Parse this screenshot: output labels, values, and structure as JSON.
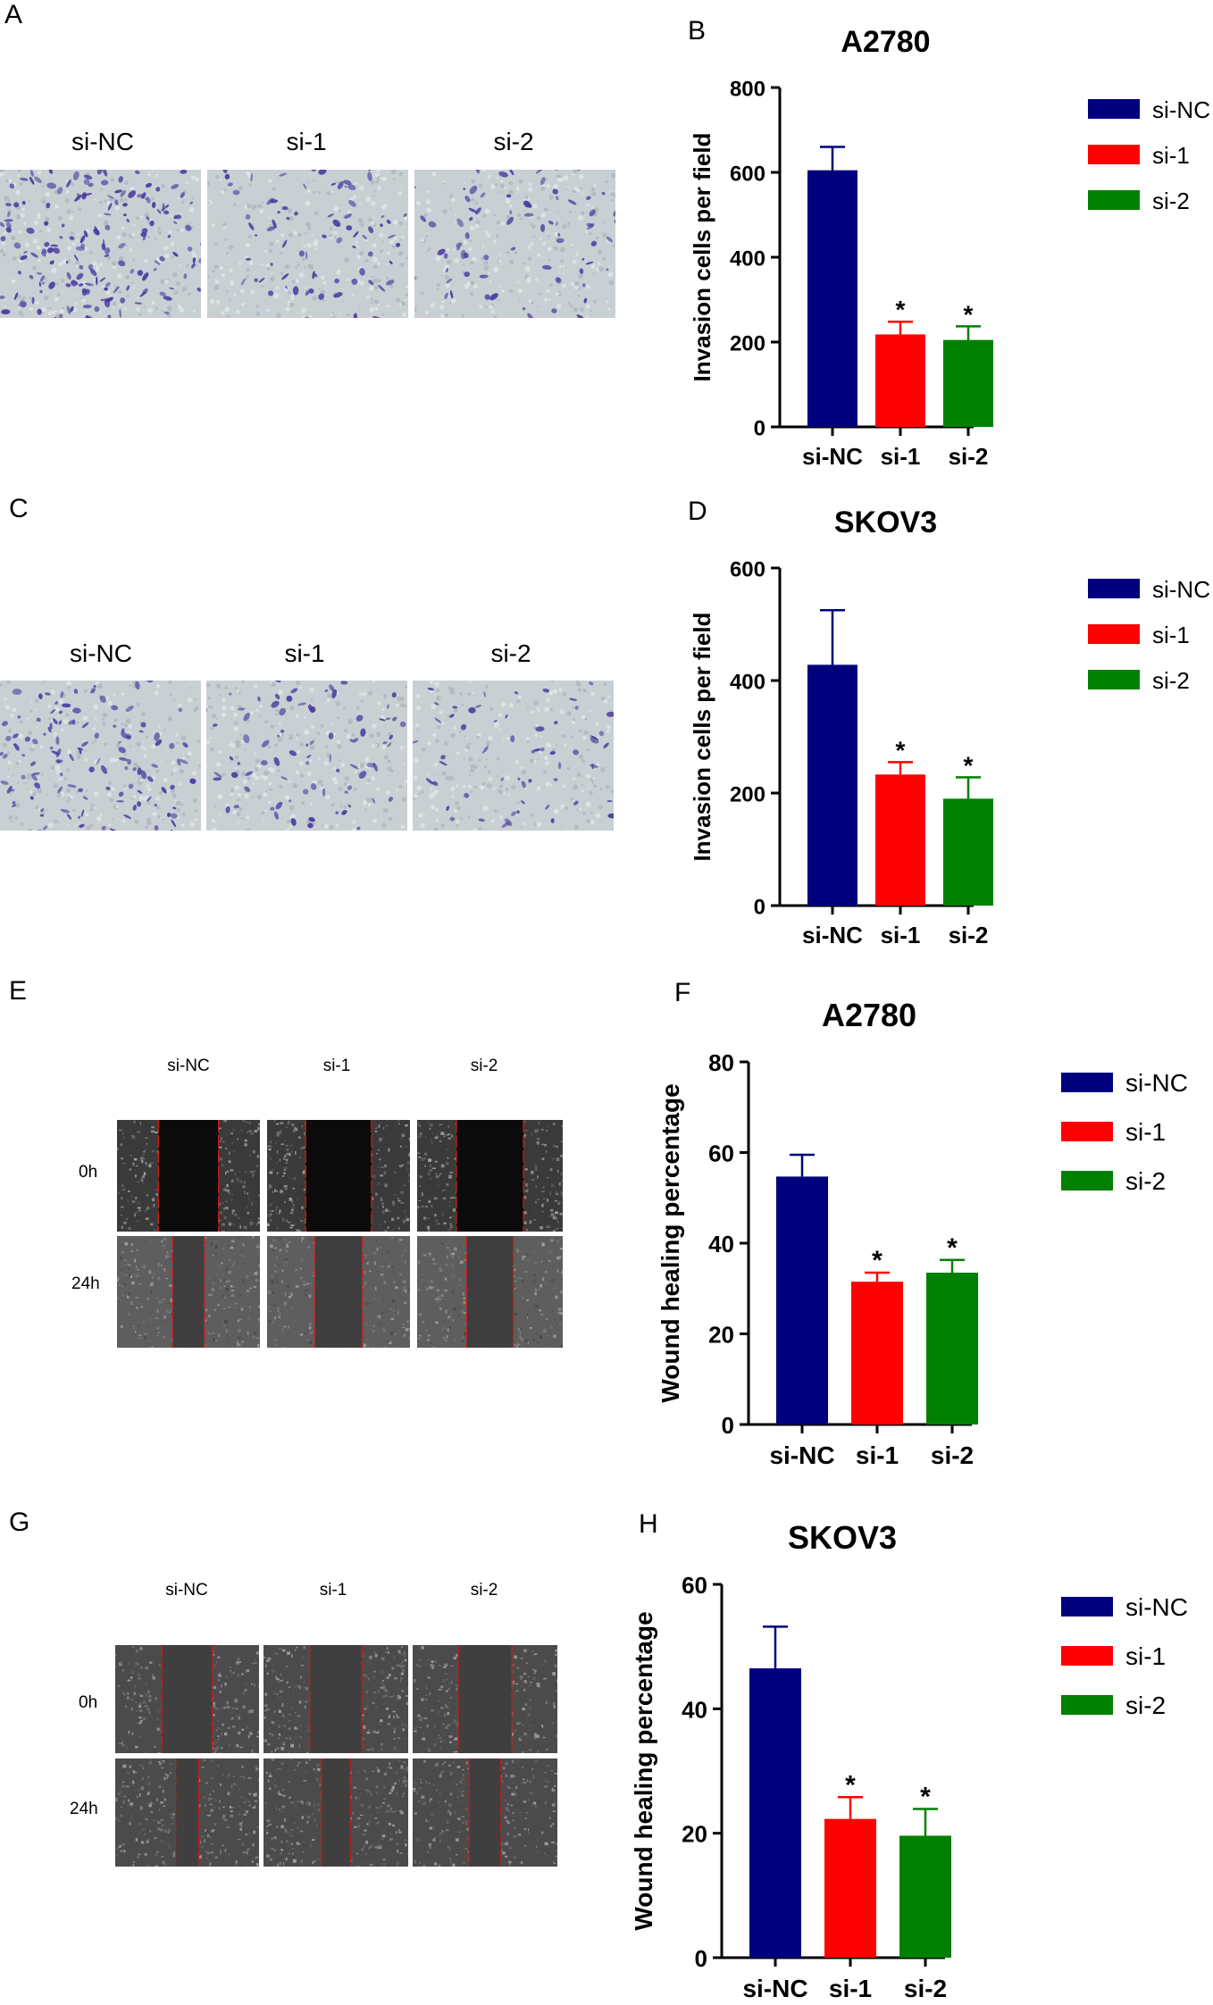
{
  "panels": {
    "a": "A",
    "b": "B",
    "c": "C",
    "d": "D",
    "e": "E",
    "f": "F",
    "g": "G",
    "h": "H"
  },
  "micrographs": {
    "invasion_labels": [
      "si-NC",
      "si-1",
      "si-2"
    ],
    "wound_col_labels": [
      "si-NC",
      "si-1",
      "si-2"
    ],
    "wound_row_labels": [
      "0h",
      "24h"
    ]
  },
  "colors": {
    "si_nc": "#00007f",
    "si_1": "#ff0000",
    "si_2": "#008000",
    "stain": "#4a3ba0",
    "gap_line": "#d01818"
  },
  "chart_data": [
    {
      "panel": "B",
      "type": "bar",
      "title": "A2780",
      "ylabel": "Invasion cells per field",
      "xlabel": "",
      "categories": [
        "si-NC",
        "si-1",
        "si-2"
      ],
      "values": [
        605,
        218,
        205
      ],
      "errors": [
        55,
        30,
        32
      ],
      "significance": [
        "",
        "*",
        "*"
      ],
      "ylim": [
        0,
        800
      ],
      "yticks": [
        0,
        200,
        400,
        600,
        800
      ],
      "legend": [
        "si-NC",
        "si-1",
        "si-2"
      ],
      "legend_position": "right"
    },
    {
      "panel": "D",
      "type": "bar",
      "title": "SKOV3",
      "ylabel": "Invasion cells per field",
      "xlabel": "",
      "categories": [
        "si-NC",
        "si-1",
        "si-2"
      ],
      "values": [
        428,
        233,
        190
      ],
      "errors": [
        97,
        22,
        38
      ],
      "significance": [
        "",
        "*",
        "*"
      ],
      "ylim": [
        0,
        600
      ],
      "yticks": [
        0,
        200,
        400,
        600
      ],
      "legend": [
        "si-NC",
        "si-1",
        "si-2"
      ],
      "legend_position": "right"
    },
    {
      "panel": "F",
      "type": "bar",
      "title": "A2780",
      "ylabel": "Wound healing percentage",
      "xlabel": "",
      "categories": [
        "si-NC",
        "si-1",
        "si-2"
      ],
      "values": [
        54.7,
        31.5,
        33.5
      ],
      "errors": [
        4.8,
        2.0,
        2.8
      ],
      "significance": [
        "",
        "*",
        "*"
      ],
      "ylim": [
        0,
        80
      ],
      "yticks": [
        0,
        20,
        40,
        60,
        80
      ],
      "legend": [
        "si-NC",
        "si-1",
        "si-2"
      ],
      "legend_position": "right"
    },
    {
      "panel": "H",
      "type": "bar",
      "title": "SKOV3",
      "ylabel": "Wound healing percentage",
      "xlabel": "",
      "categories": [
        "si-NC",
        "si-1",
        "si-2"
      ],
      "values": [
        46.5,
        22.3,
        19.6
      ],
      "errors": [
        6.7,
        3.5,
        4.3
      ],
      "significance": [
        "",
        "*",
        "*"
      ],
      "ylim": [
        0,
        60
      ],
      "yticks": [
        0,
        20,
        40,
        60
      ],
      "legend": [
        "si-NC",
        "si-1",
        "si-2"
      ],
      "legend_position": "right"
    }
  ]
}
